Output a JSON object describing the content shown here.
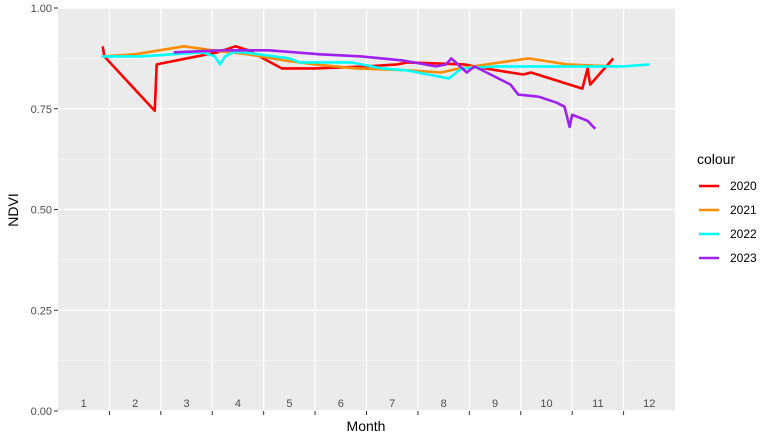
{
  "chart_data": {
    "type": "line",
    "xlabel": "Month",
    "ylabel": "NDVI",
    "ylim": [
      0,
      1
    ],
    "y_ticks": [
      "0.00",
      "0.25",
      "0.50",
      "0.75",
      "1.00"
    ],
    "x_tick_labels": [
      "1",
      "2",
      "3",
      "4",
      "5",
      "6",
      "7",
      "8",
      "9",
      "10",
      "11",
      "12"
    ],
    "grid": true,
    "legend_title": "colour",
    "legend_position": "right",
    "series": [
      {
        "name": "2020",
        "color": "#ff0000",
        "points": [
          [
            1.37,
            0.905
          ],
          [
            1.4,
            0.88
          ],
          [
            2.38,
            0.745
          ],
          [
            2.42,
            0.86
          ],
          [
            3.6,
            0.89
          ],
          [
            3.95,
            0.905
          ],
          [
            4.2,
            0.895
          ],
          [
            4.85,
            0.85
          ],
          [
            5.5,
            0.85
          ],
          [
            6.5,
            0.855
          ],
          [
            7.1,
            0.86
          ],
          [
            7.3,
            0.865
          ],
          [
            8.4,
            0.86
          ],
          [
            8.8,
            0.85
          ],
          [
            9.3,
            0.84
          ],
          [
            9.55,
            0.835
          ],
          [
            9.7,
            0.84
          ],
          [
            10.7,
            0.8
          ],
          [
            10.8,
            0.85
          ],
          [
            10.85,
            0.81
          ],
          [
            11.3,
            0.875
          ]
        ]
      },
      {
        "name": "2021",
        "color": "#ff8c00",
        "points": [
          [
            1.35,
            0.88
          ],
          [
            2.0,
            0.885
          ],
          [
            2.95,
            0.905
          ],
          [
            3.5,
            0.895
          ],
          [
            4.2,
            0.885
          ],
          [
            4.9,
            0.87
          ],
          [
            5.5,
            0.86
          ],
          [
            6.3,
            0.85
          ],
          [
            7.4,
            0.845
          ],
          [
            7.95,
            0.84
          ],
          [
            8.3,
            0.85
          ],
          [
            9.65,
            0.875
          ],
          [
            10.4,
            0.86
          ],
          [
            11.3,
            0.855
          ]
        ]
      },
      {
        "name": "2022",
        "color": "#00ffff",
        "points": [
          [
            1.35,
            0.88
          ],
          [
            2.1,
            0.88
          ],
          [
            3.3,
            0.89
          ],
          [
            3.55,
            0.88
          ],
          [
            3.65,
            0.86
          ],
          [
            3.75,
            0.88
          ],
          [
            3.9,
            0.89
          ],
          [
            4.1,
            0.89
          ],
          [
            5.0,
            0.875
          ],
          [
            5.2,
            0.865
          ],
          [
            5.6,
            0.865
          ],
          [
            6.2,
            0.865
          ],
          [
            6.8,
            0.85
          ],
          [
            7.3,
            0.845
          ],
          [
            7.9,
            0.83
          ],
          [
            8.1,
            0.825
          ],
          [
            8.35,
            0.85
          ],
          [
            9.0,
            0.855
          ],
          [
            10.0,
            0.855
          ],
          [
            10.8,
            0.855
          ],
          [
            11.5,
            0.855
          ],
          [
            12.0,
            0.86
          ]
        ]
      },
      {
        "name": "2023",
        "color": "#a020f0",
        "points": [
          [
            2.75,
            0.89
          ],
          [
            3.7,
            0.895
          ],
          [
            4.6,
            0.895
          ],
          [
            5.6,
            0.885
          ],
          [
            6.4,
            0.88
          ],
          [
            6.8,
            0.875
          ],
          [
            7.2,
            0.87
          ],
          [
            7.85,
            0.855
          ],
          [
            8.05,
            0.86
          ],
          [
            8.15,
            0.875
          ],
          [
            8.45,
            0.84
          ],
          [
            8.6,
            0.855
          ],
          [
            9.3,
            0.81
          ],
          [
            9.45,
            0.785
          ],
          [
            9.85,
            0.78
          ],
          [
            10.2,
            0.765
          ],
          [
            10.35,
            0.755
          ],
          [
            10.45,
            0.705
          ],
          [
            10.5,
            0.735
          ],
          [
            10.8,
            0.72
          ],
          [
            10.95,
            0.7
          ]
        ]
      }
    ]
  }
}
